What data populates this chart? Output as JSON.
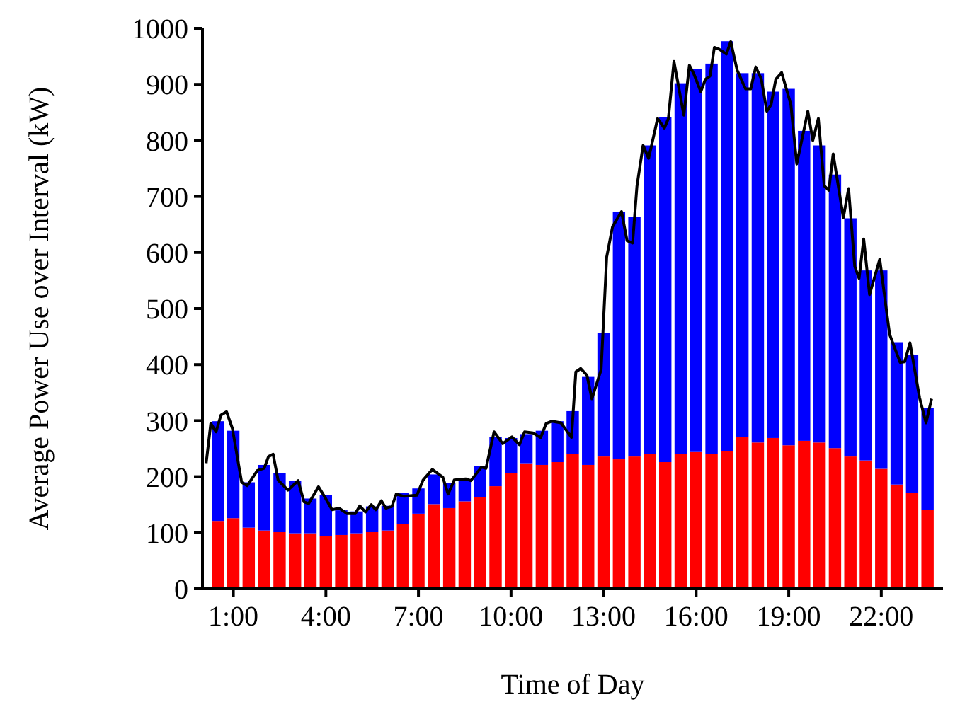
{
  "chart_data": {
    "type": "bar",
    "stacked": true,
    "xlabel": "Time of Day",
    "ylabel": "Average Power Use over Interval (kW)",
    "x": [
      0.5,
      1,
      1.5,
      2,
      2.5,
      3,
      3.5,
      4,
      4.5,
      5,
      5.5,
      6,
      6.5,
      7,
      7.5,
      8,
      8.5,
      9,
      9.5,
      10,
      10.5,
      11,
      11.5,
      12,
      12.5,
      13,
      13.5,
      14,
      14.5,
      15,
      15.5,
      16,
      16.5,
      17,
      17.5,
      18,
      18.5,
      19,
      19.5,
      20,
      20.5,
      21,
      21.5,
      22,
      22.5,
      23,
      23.5
    ],
    "series": [
      {
        "color": "#ff0000",
        "values": [
          121,
          126,
          109,
          104,
          101,
          99,
          99,
          94,
          96,
          99,
          101,
          104,
          116,
          134,
          151,
          144,
          156,
          164,
          183,
          206,
          224,
          221,
          226,
          240,
          221,
          236,
          231,
          236,
          240,
          226,
          241,
          244,
          240,
          246,
          271,
          261,
          269,
          256,
          264,
          261,
          251,
          236,
          229,
          214,
          186,
          171,
          141
        ]
      },
      {
        "color": "#0000ff",
        "values": [
          178,
          156,
          81,
          117,
          105,
          93,
          62,
          73,
          44,
          39,
          46,
          44,
          55,
          45,
          53,
          45,
          37,
          55,
          88,
          63,
          52,
          61,
          73,
          77,
          157,
          221,
          442,
          427,
          551,
          616,
          661,
          683,
          697,
          731,
          649,
          659,
          618,
          636,
          553,
          530,
          488,
          425,
          339,
          354,
          254,
          246,
          181
        ]
      },
      {
        "type": "line",
        "color": "#000000",
        "x": [
          0.12,
          0.27,
          0.44,
          0.6,
          0.78,
          0.97,
          1.27,
          1.45,
          1.78,
          2.0,
          2.14,
          2.29,
          2.45,
          2.77,
          3.1,
          3.29,
          3.44,
          3.76,
          3.95,
          4.2,
          4.42,
          4.69,
          4.95,
          5.1,
          5.28,
          5.47,
          5.62,
          5.8,
          5.94,
          6.14,
          6.28,
          6.53,
          6.95,
          7.15,
          7.45,
          7.79,
          7.96,
          8.16,
          8.53,
          8.7,
          9.04,
          9.19,
          9.45,
          9.73,
          10.03,
          10.27,
          10.44,
          10.71,
          10.96,
          11.14,
          11.33,
          11.62,
          11.96,
          12.1,
          12.26,
          12.46,
          12.62,
          12.92,
          13.1,
          13.29,
          13.58,
          13.76,
          13.94,
          14.08,
          14.28,
          14.46,
          14.75,
          14.97,
          15.1,
          15.28,
          15.6,
          15.78,
          15.93,
          16.15,
          16.3,
          16.45,
          16.59,
          16.74,
          16.98,
          17.12,
          17.33,
          17.6,
          17.77,
          17.93,
          18.11,
          18.29,
          18.43,
          18.58,
          18.77,
          19.07,
          19.26,
          19.62,
          19.78,
          19.96,
          20.15,
          20.3,
          20.44,
          20.77,
          20.94,
          21.14,
          21.28,
          21.43,
          21.62,
          21.95,
          22.27,
          22.61,
          22.76,
          22.93,
          23.24,
          23.45,
          23.63
        ],
        "values": [
          224,
          295,
          280,
          310,
          316,
          286,
          190,
          184,
          211,
          215,
          236,
          240,
          194,
          176,
          193,
          155,
          152,
          182,
          165,
          141,
          144,
          134,
          134,
          148,
          137,
          150,
          141,
          157,
          144,
          147,
          169,
          165,
          167,
          194,
          213,
          199,
          169,
          194,
          196,
          193,
          217,
          215,
          280,
          259,
          271,
          257,
          280,
          278,
          270,
          295,
          299,
          296,
          270,
          387,
          393,
          381,
          339,
          391,
          592,
          646,
          673,
          621,
          617,
          718,
          791,
          768,
          839,
          822,
          839,
          941,
          845,
          934,
          918,
          887,
          909,
          915,
          966,
          963,
          954,
          976,
          925,
          892,
          892,
          931,
          910,
          852,
          864,
          909,
          921,
          864,
          758,
          852,
          800,
          839,
          719,
          711,
          776,
          662,
          714,
          575,
          554,
          624,
          525,
          588,
          454,
          404,
          405,
          439,
          341,
          296,
          339
        ]
      }
    ],
    "xlim": [
      0,
      24
    ],
    "xticks": [
      {
        "value": 1,
        "label": "1:00"
      },
      {
        "value": 4,
        "label": "4:00"
      },
      {
        "value": 7,
        "label": "7:00"
      },
      {
        "value": 10,
        "label": "10:00"
      },
      {
        "value": 13,
        "label": "13:00"
      },
      {
        "value": 16,
        "label": "16:00"
      },
      {
        "value": 19,
        "label": "19:00"
      },
      {
        "value": 22,
        "label": "22:00"
      }
    ],
    "ylim": [
      0,
      1000
    ],
    "yticks": [
      0,
      100,
      200,
      300,
      400,
      500,
      600,
      700,
      800,
      900,
      1000
    ],
    "grid": false
  }
}
